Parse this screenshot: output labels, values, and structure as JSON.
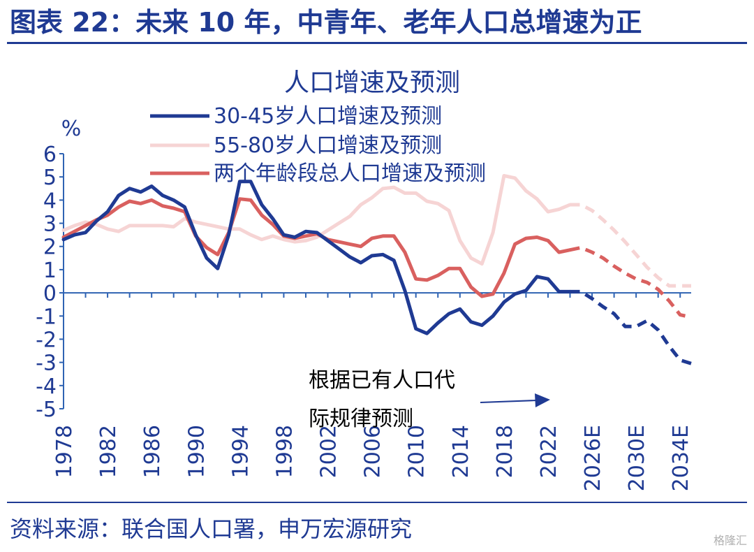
{
  "header": {
    "title": "图表 22：未来 10 年，中青年、老年人口总增速为正"
  },
  "footer": {
    "source": "资料来源：联合国人口署，申万宏源研究",
    "watermark": "格隆汇"
  },
  "chart_data": {
    "type": "line",
    "title": "人口增速及预测",
    "ylabel": "%",
    "ylim": [
      -5,
      6
    ],
    "yticks": [
      "6",
      "5",
      "4",
      "3",
      "2",
      "1",
      "0",
      "-1",
      "-2",
      "-3",
      "-4",
      "-5"
    ],
    "xtick_labels": [
      "1978",
      "1982",
      "1986",
      "1990",
      "1994",
      "1998",
      "2002",
      "2006",
      "2010",
      "2014",
      "2018",
      "2022",
      "2026E",
      "2030E",
      "2034E"
    ],
    "x": [
      "1978",
      "1979",
      "1980",
      "1981",
      "1982",
      "1983",
      "1984",
      "1985",
      "1986",
      "1987",
      "1988",
      "1989",
      "1990",
      "1991",
      "1992",
      "1993",
      "1994",
      "1995",
      "1996",
      "1997",
      "1998",
      "1999",
      "2000",
      "2001",
      "2002",
      "2003",
      "2004",
      "2005",
      "2006",
      "2007",
      "2008",
      "2009",
      "2010",
      "2011",
      "2012",
      "2013",
      "2014",
      "2015",
      "2016",
      "2017",
      "2018",
      "2019",
      "2020",
      "2021",
      "2022",
      "2023",
      "2024",
      "2025",
      "2026E",
      "2027E",
      "2028E",
      "2029E",
      "2030E",
      "2031E",
      "2032E",
      "2033E",
      "2034E",
      "2035E"
    ],
    "forecast_start": "2024",
    "series": [
      {
        "name": "30-45岁人口增速及预测",
        "color": "#1f3a93",
        "width": 5,
        "values": [
          2.3,
          2.5,
          2.6,
          3.1,
          3.5,
          4.2,
          4.5,
          4.35,
          4.6,
          4.2,
          4.0,
          3.7,
          2.5,
          1.5,
          1.05,
          2.5,
          4.8,
          4.8,
          3.8,
          3.2,
          2.5,
          2.4,
          2.65,
          2.6,
          2.25,
          1.9,
          1.55,
          1.3,
          1.6,
          1.65,
          1.4,
          0.1,
          -1.55,
          -1.75,
          -1.3,
          -0.9,
          -0.7,
          -1.25,
          -1.4,
          -1.0,
          -0.4,
          -0.05,
          0.1,
          0.7,
          0.6,
          0.05,
          0.05,
          0.05,
          -0.25,
          -0.6,
          -0.9,
          -1.45,
          -1.45,
          -1.2,
          -1.6,
          -2.3,
          -2.9,
          -3.05
        ]
      },
      {
        "name": "55-80岁人口增速及预测",
        "color": "#f6d4d4",
        "width": 5,
        "values": [
          2.7,
          2.9,
          3.05,
          2.95,
          2.75,
          2.65,
          2.9,
          2.9,
          2.9,
          2.9,
          2.85,
          3.2,
          3.05,
          2.95,
          2.85,
          2.75,
          2.75,
          2.5,
          2.3,
          2.45,
          2.3,
          2.2,
          2.25,
          2.4,
          2.7,
          3.0,
          3.3,
          3.8,
          4.1,
          4.5,
          4.55,
          4.3,
          4.3,
          3.95,
          3.85,
          3.55,
          2.25,
          1.5,
          1.25,
          2.6,
          5.05,
          4.95,
          4.4,
          4.05,
          3.5,
          3.6,
          3.8,
          3.8,
          3.55,
          3.15,
          2.7,
          2.2,
          1.65,
          1.1,
          0.65,
          0.3,
          0.3,
          0.3
        ]
      },
      {
        "name": "两个年龄段总人口增速及预测",
        "color": "#d9605f",
        "width": 5,
        "values": [
          2.4,
          2.65,
          2.9,
          3.15,
          3.35,
          3.7,
          3.95,
          3.85,
          4.0,
          3.75,
          3.65,
          3.5,
          2.45,
          1.95,
          1.65,
          2.6,
          4.05,
          4.0,
          3.35,
          2.95,
          2.45,
          2.35,
          2.45,
          2.55,
          2.3,
          2.2,
          2.1,
          2.0,
          2.35,
          2.45,
          2.45,
          1.75,
          0.6,
          0.55,
          0.75,
          1.05,
          1.05,
          0.25,
          -0.15,
          -0.05,
          0.85,
          2.1,
          2.35,
          2.4,
          2.25,
          1.75,
          1.85,
          1.95,
          1.75,
          1.5,
          1.15,
          0.85,
          0.6,
          0.45,
          0.15,
          -0.35,
          -0.95,
          -1.05
        ]
      }
    ],
    "annotation": {
      "line1": "根据已有人口代",
      "line2": "际规律预测"
    },
    "legend_placement": "top"
  }
}
